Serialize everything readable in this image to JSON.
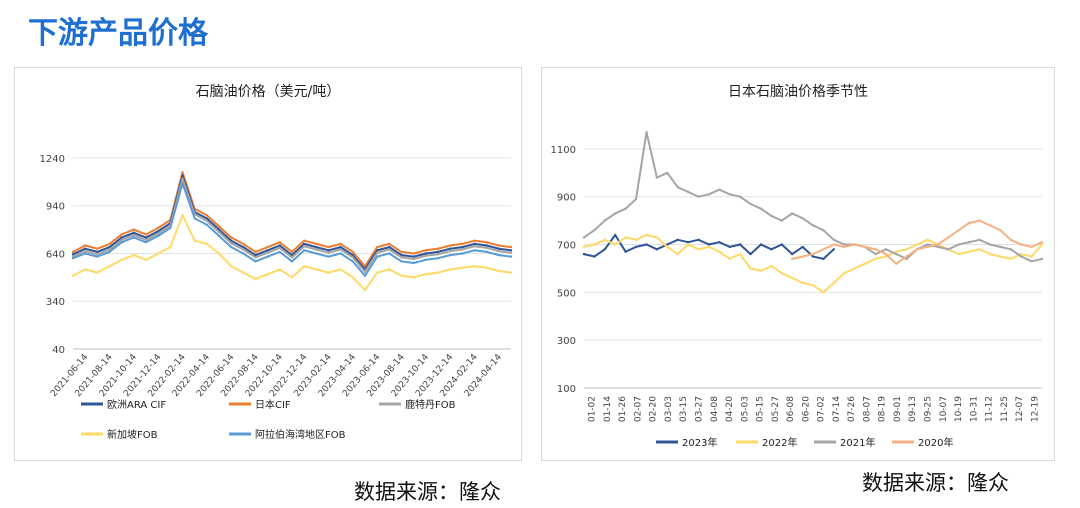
{
  "page": {
    "title": "下游产品价格"
  },
  "sources": {
    "left": "数据来源：隆众",
    "right": "数据来源：隆众"
  },
  "chart_data": [
    {
      "type": "line",
      "title": "石脑油价格（美元/吨）",
      "xlabel": "",
      "ylabel": "",
      "ylim": [
        40,
        1340
      ],
      "yticks": [
        40,
        340,
        640,
        940,
        1240
      ],
      "xlim": [
        0,
        36
      ],
      "xticks": [
        "2021-06-14",
        "2021-08-14",
        "2021-10-14",
        "2021-12-14",
        "2022-02-14",
        "2022-04-14",
        "2022-06-14",
        "2022-08-14",
        "2022-10-14",
        "2022-12-14",
        "2023-02-14",
        "2023-04-14",
        "2023-06-14",
        "2023-08-14",
        "2023-10-14",
        "2023-12-14",
        "2024-02-14",
        "2024-04-14"
      ],
      "legend": [
        "欧洲ARA CIF",
        "日本CIF",
        "鹿特丹FOB",
        "新加坡FOB",
        "阿拉伯海湾地区FOB"
      ],
      "series": [
        {
          "name": "日本CIF",
          "color": "#ed7d31",
          "x": [
            0,
            1,
            2,
            3,
            4,
            5,
            6,
            7,
            8,
            9,
            10,
            11,
            12,
            13,
            14,
            15,
            16,
            17,
            18,
            19,
            20,
            21,
            22,
            23,
            24,
            25,
            26,
            27,
            28,
            29,
            30,
            31,
            32,
            33,
            34,
            35,
            36
          ],
          "values": [
            650,
            690,
            670,
            700,
            760,
            790,
            760,
            800,
            850,
            1150,
            920,
            880,
            810,
            740,
            700,
            650,
            680,
            710,
            650,
            720,
            700,
            680,
            700,
            650,
            560,
            680,
            700,
            650,
            640,
            660,
            670,
            690,
            700,
            720,
            710,
            690,
            680
          ]
        },
        {
          "name": "欧洲ARA CIF",
          "color": "#2e5597",
          "x": [
            0,
            1,
            2,
            3,
            4,
            5,
            6,
            7,
            8,
            9,
            10,
            11,
            12,
            13,
            14,
            15,
            16,
            17,
            18,
            19,
            20,
            21,
            22,
            23,
            24,
            25,
            26,
            27,
            28,
            29,
            30,
            31,
            32,
            33,
            34,
            35,
            36
          ],
          "values": [
            635,
            670,
            650,
            680,
            740,
            770,
            740,
            780,
            830,
            1130,
            900,
            860,
            790,
            720,
            680,
            630,
            660,
            690,
            630,
            700,
            680,
            660,
            680,
            630,
            540,
            660,
            680,
            630,
            620,
            640,
            650,
            670,
            680,
            700,
            690,
            670,
            660
          ]
        },
        {
          "name": "鹿特丹FOB",
          "color": "#a5a5a5",
          "x": [
            0,
            1,
            2,
            3,
            4,
            5,
            6,
            7,
            8,
            9,
            10,
            11,
            12,
            13,
            14,
            15,
            16,
            17,
            18,
            19,
            20,
            21,
            22,
            23,
            24,
            25,
            26,
            27,
            28,
            29,
            30,
            31,
            32,
            33,
            34,
            35,
            36
          ],
          "values": [
            620,
            655,
            635,
            665,
            725,
            755,
            725,
            765,
            815,
            1110,
            885,
            845,
            775,
            705,
            665,
            615,
            645,
            675,
            615,
            685,
            665,
            645,
            665,
            615,
            525,
            645,
            665,
            615,
            605,
            625,
            635,
            655,
            665,
            685,
            675,
            655,
            645
          ]
        },
        {
          "name": "阿拉伯海湾地区FOB",
          "color": "#5b9bd5",
          "x": [
            0,
            1,
            2,
            3,
            4,
            5,
            6,
            7,
            8,
            9,
            10,
            11,
            12,
            13,
            14,
            15,
            16,
            17,
            18,
            19,
            20,
            21,
            22,
            23,
            24,
            25,
            26,
            27,
            28,
            29,
            30,
            31,
            32,
            33,
            34,
            35,
            36
          ],
          "values": [
            610,
            640,
            620,
            650,
            710,
            740,
            710,
            750,
            800,
            1080,
            860,
            820,
            750,
            680,
            640,
            590,
            620,
            650,
            590,
            660,
            640,
            620,
            640,
            590,
            500,
            620,
            640,
            590,
            580,
            600,
            610,
            630,
            640,
            660,
            650,
            630,
            620
          ]
        },
        {
          "name": "新加坡FOB",
          "color": "#ffd966",
          "x": [
            0,
            1,
            2,
            3,
            4,
            5,
            6,
            7,
            8,
            9,
            10,
            11,
            12,
            13,
            14,
            15,
            16,
            17,
            18,
            19,
            20,
            21,
            22,
            23,
            24,
            25,
            26,
            27,
            28,
            29,
            30,
            31,
            32,
            33,
            34,
            35,
            36
          ],
          "values": [
            500,
            540,
            520,
            560,
            600,
            630,
            600,
            640,
            680,
            880,
            720,
            700,
            640,
            560,
            520,
            480,
            510,
            540,
            490,
            560,
            540,
            520,
            540,
            490,
            410,
            520,
            540,
            500,
            490,
            510,
            520,
            540,
            550,
            560,
            550,
            530,
            520
          ]
        }
      ]
    },
    {
      "type": "line",
      "title": "日本石脑油价格季节性",
      "xlabel": "",
      "ylabel": "",
      "ylim": [
        100,
        1200
      ],
      "yticks": [
        100,
        300,
        500,
        700,
        900,
        1100
      ],
      "xlim": [
        0,
        44
      ],
      "xticks": [
        "01-02",
        "01-14",
        "01-26",
        "02-07",
        "02-20",
        "03-03",
        "03-15",
        "03-27",
        "04-08",
        "04-20",
        "05-03",
        "05-15",
        "05-27",
        "06-08",
        "06-20",
        "07-02",
        "07-14",
        "07-26",
        "08-07",
        "08-19",
        "09-01",
        "09-13",
        "09-25",
        "10-07",
        "10-19",
        "10-31",
        "11-12",
        "11-25",
        "12-07",
        "12-19"
      ],
      "legend": [
        "2023年",
        "2022年",
        "2021年",
        "2020年"
      ],
      "series": [
        {
          "name": "2023年",
          "color": "#2e5597",
          "x": [
            0,
            1,
            2,
            3,
            4,
            5,
            6,
            7,
            8,
            9,
            10,
            11,
            12,
            13,
            14,
            15,
            16,
            17,
            18,
            19,
            20,
            21,
            22,
            23,
            24
          ],
          "values": [
            660,
            650,
            680,
            740,
            670,
            690,
            700,
            680,
            700,
            720,
            710,
            720,
            700,
            710,
            690,
            700,
            660,
            700,
            680,
            700,
            660,
            690,
            650,
            640,
            680
          ]
        },
        {
          "name": "2022年",
          "color": "#ffd966",
          "x": [
            0,
            1,
            2,
            3,
            4,
            5,
            6,
            7,
            8,
            9,
            10,
            11,
            12,
            13,
            14,
            15,
            16,
            17,
            18,
            19,
            20,
            21,
            22,
            23,
            24,
            25,
            26,
            27,
            28,
            29,
            30,
            31,
            32,
            33,
            34,
            35,
            36,
            37,
            38,
            39,
            40,
            41,
            42,
            43,
            44
          ],
          "values": [
            690,
            700,
            720,
            700,
            730,
            720,
            740,
            730,
            690,
            660,
            700,
            680,
            690,
            670,
            640,
            660,
            600,
            590,
            610,
            580,
            560,
            540,
            530,
            500,
            540,
            580,
            600,
            620,
            640,
            650,
            670,
            680,
            700,
            720,
            700,
            680,
            660,
            670,
            680,
            660,
            650,
            640,
            660,
            650,
            700
          ]
        },
        {
          "name": "2021年",
          "color": "#a5a5a5",
          "x": [
            0,
            1,
            2,
            3,
            4,
            5,
            6,
            7,
            8,
            9,
            10,
            11,
            12,
            13,
            14,
            15,
            16,
            17,
            18,
            19,
            20,
            21,
            22,
            23,
            24,
            25,
            26,
            27,
            28,
            29,
            30,
            31,
            32,
            33,
            34,
            35,
            36,
            37,
            38,
            39,
            40,
            41,
            42,
            43,
            44
          ],
          "values": [
            730,
            760,
            800,
            830,
            850,
            890,
            1170,
            980,
            1000,
            940,
            920,
            900,
            910,
            930,
            910,
            900,
            870,
            850,
            820,
            800,
            830,
            810,
            780,
            760,
            720,
            700,
            700,
            690,
            660,
            680,
            660,
            640,
            680,
            700,
            690,
            680,
            700,
            710,
            720,
            700,
            690,
            680,
            650,
            630,
            640
          ]
        },
        {
          "name": "2020年",
          "color": "#f4b183",
          "x": [
            20,
            21,
            22,
            23,
            24,
            25,
            26,
            27,
            28,
            29,
            30,
            31,
            32,
            33,
            34,
            35,
            36,
            37,
            38,
            39,
            40,
            41,
            42,
            43,
            44
          ],
          "values": [
            640,
            650,
            660,
            680,
            700,
            690,
            700,
            690,
            680,
            660,
            620,
            650,
            680,
            690,
            700,
            730,
            760,
            790,
            800,
            780,
            760,
            720,
            700,
            690,
            710
          ]
        }
      ]
    }
  ]
}
